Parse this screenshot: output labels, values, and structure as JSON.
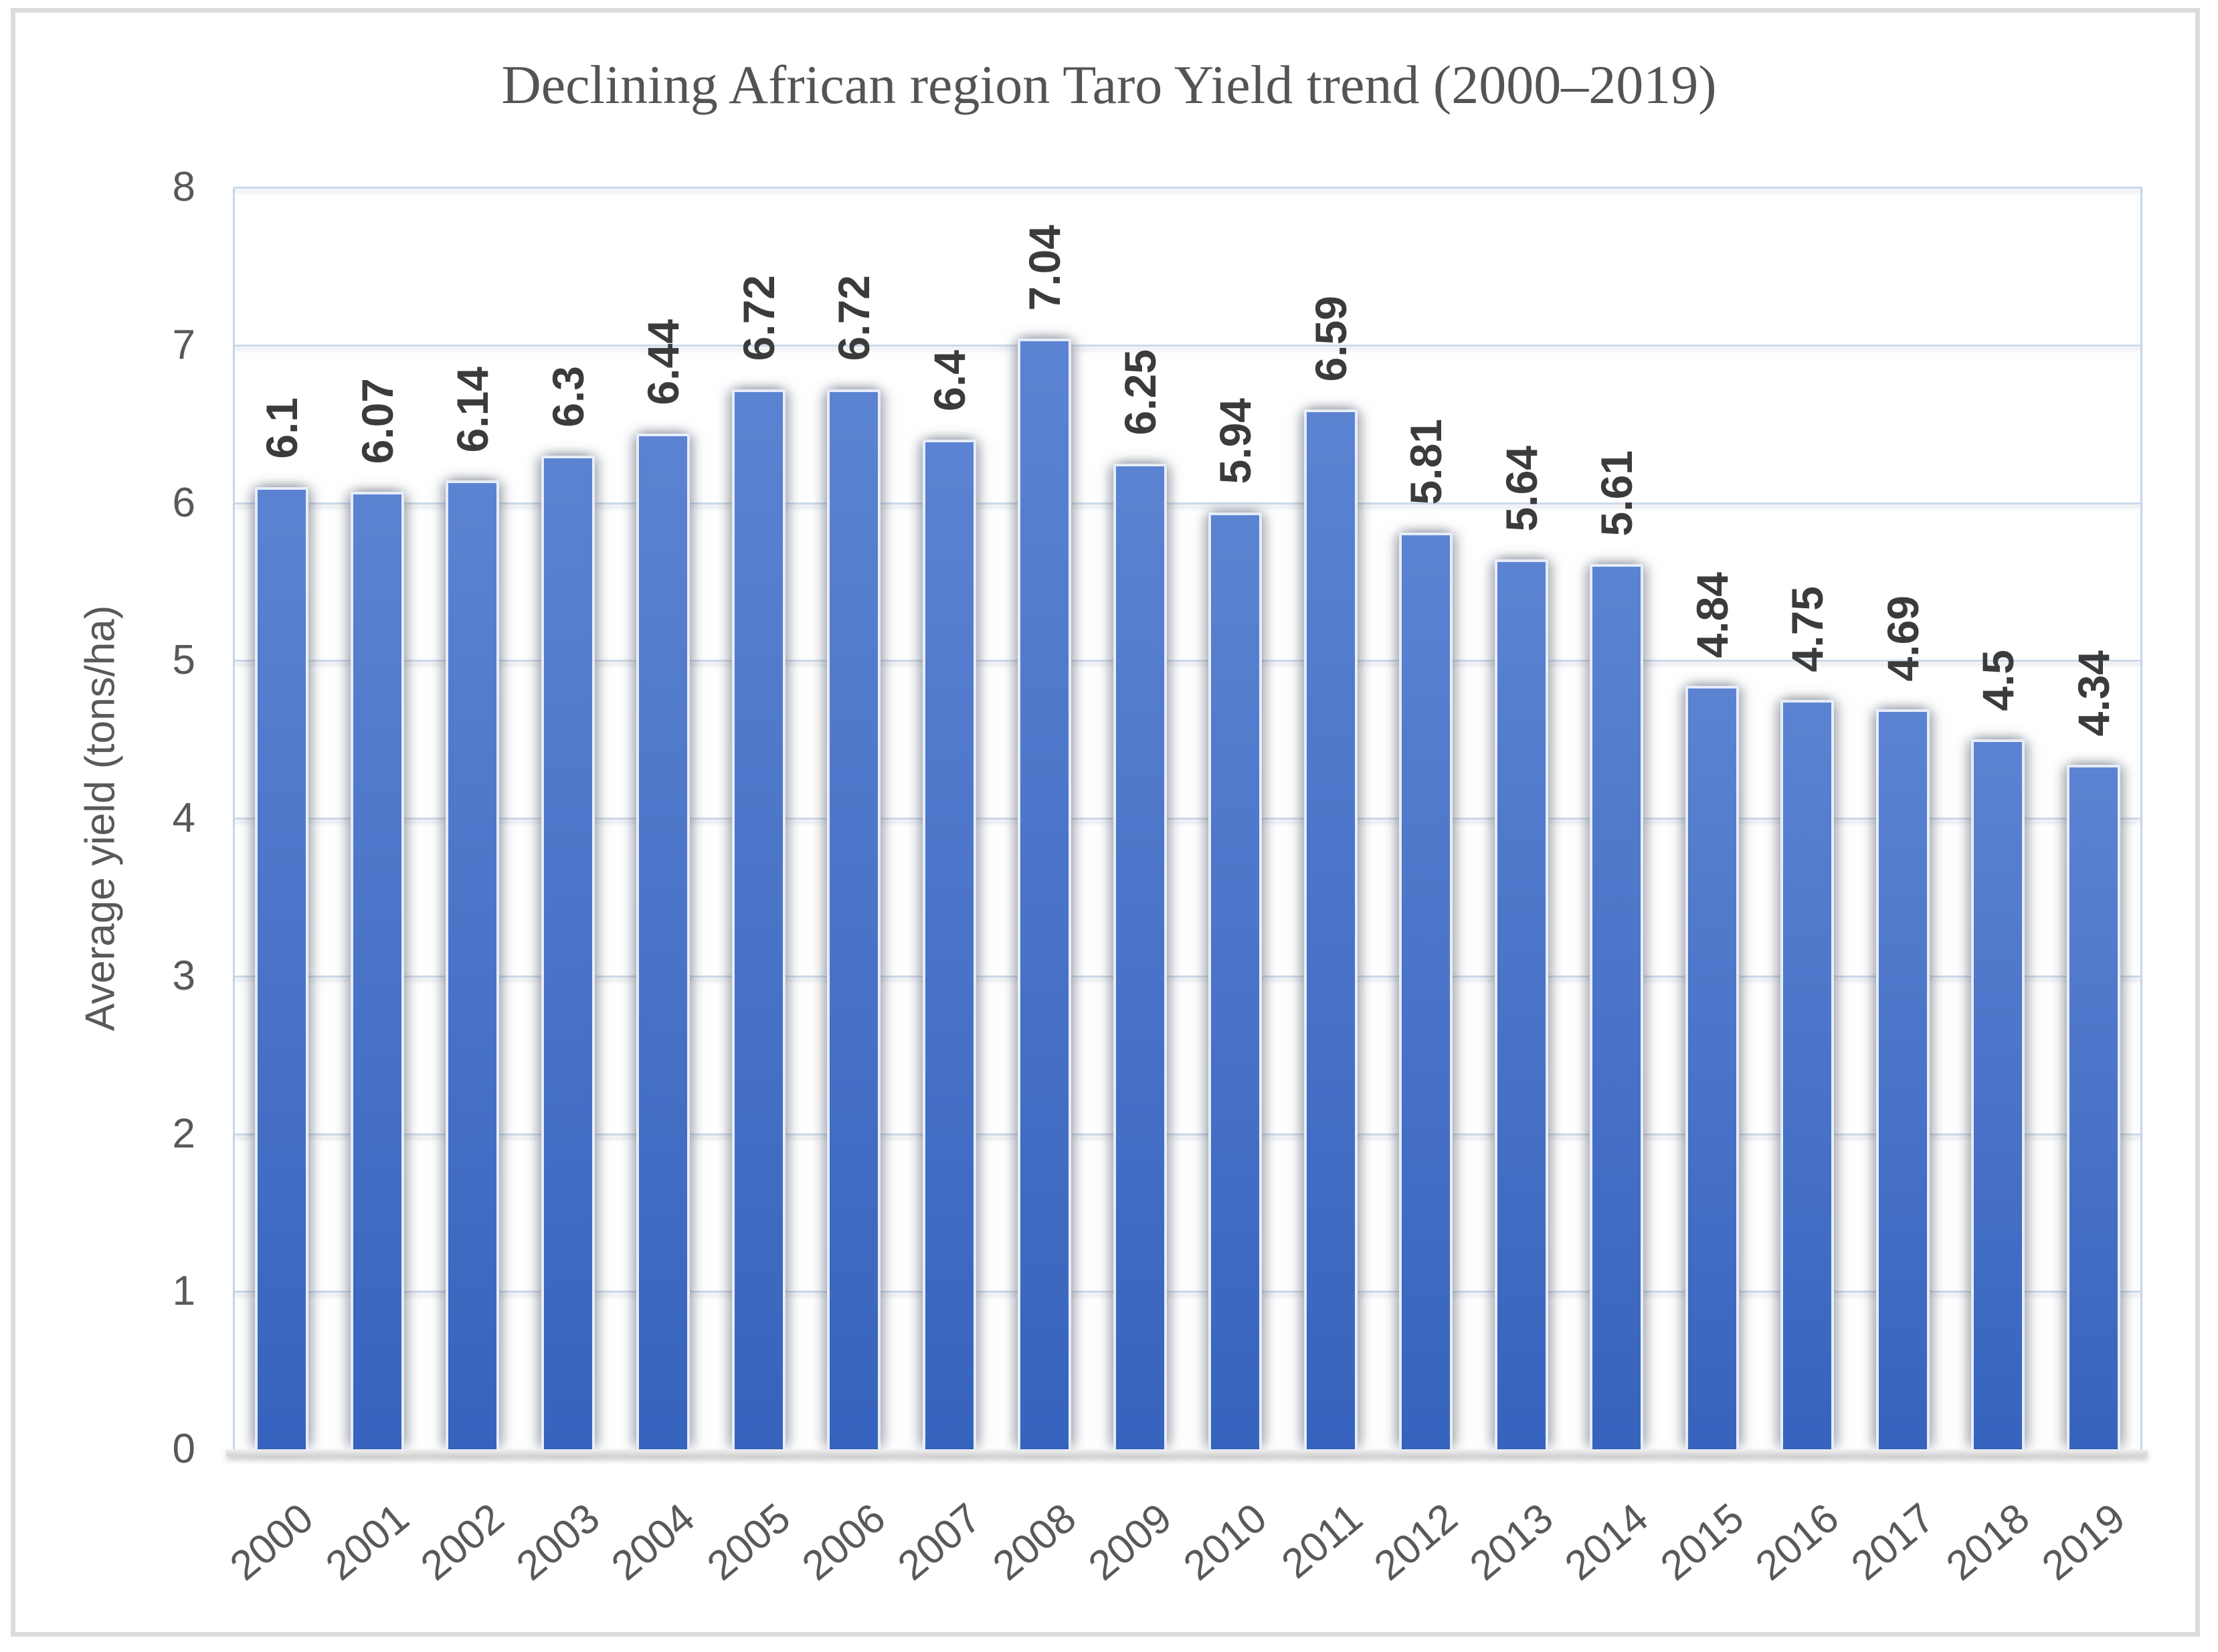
{
  "chart_data": {
    "type": "bar",
    "title": "Declining African region Taro Yield trend (2000–2019)",
    "xlabel": "",
    "ylabel": "Average yield (tons/ha)",
    "categories": [
      "2000",
      "2001",
      "2002",
      "2003",
      "2004",
      "2005",
      "2006",
      "2007",
      "2008",
      "2009",
      "2010",
      "2011",
      "2012",
      "2013",
      "2014",
      "2015",
      "2016",
      "2017",
      "2018",
      "2019"
    ],
    "values": [
      6.1,
      6.07,
      6.14,
      6.3,
      6.44,
      6.72,
      6.72,
      6.4,
      7.04,
      6.25,
      5.94,
      6.59,
      5.81,
      5.64,
      5.61,
      4.84,
      4.75,
      4.69,
      4.5,
      4.34
    ],
    "value_labels": [
      "6.1",
      "6.07",
      "6.14",
      "6.3",
      "6.44",
      "6.72",
      "6.72",
      "6.4",
      "7.04",
      "6.25",
      "5.94",
      "6.59",
      "5.81",
      "5.64",
      "5.61",
      "4.84",
      "4.75",
      "4.69",
      "4.5",
      "4.34"
    ],
    "ylim": [
      0,
      8
    ],
    "yticks": [
      0,
      1,
      2,
      3,
      4,
      5,
      6,
      7,
      8
    ],
    "grid": "horizontal",
    "legend": "none",
    "data_label_rotation": 90,
    "category_label_rotation": -40
  },
  "style_colors": {
    "title_text": "#545454",
    "axis_text": "#595959",
    "data_label_text": "#3b3b3b",
    "gridline": "#ccd9ea",
    "axis_line": "#c7d5ec",
    "bar_fill_top": "#5b83d2",
    "bar_fill_mid": "#4872c7",
    "bar_fill_bottom": "#3663bd",
    "bar_border": "#e7edf8",
    "frame_border": "#dcdcdc"
  }
}
